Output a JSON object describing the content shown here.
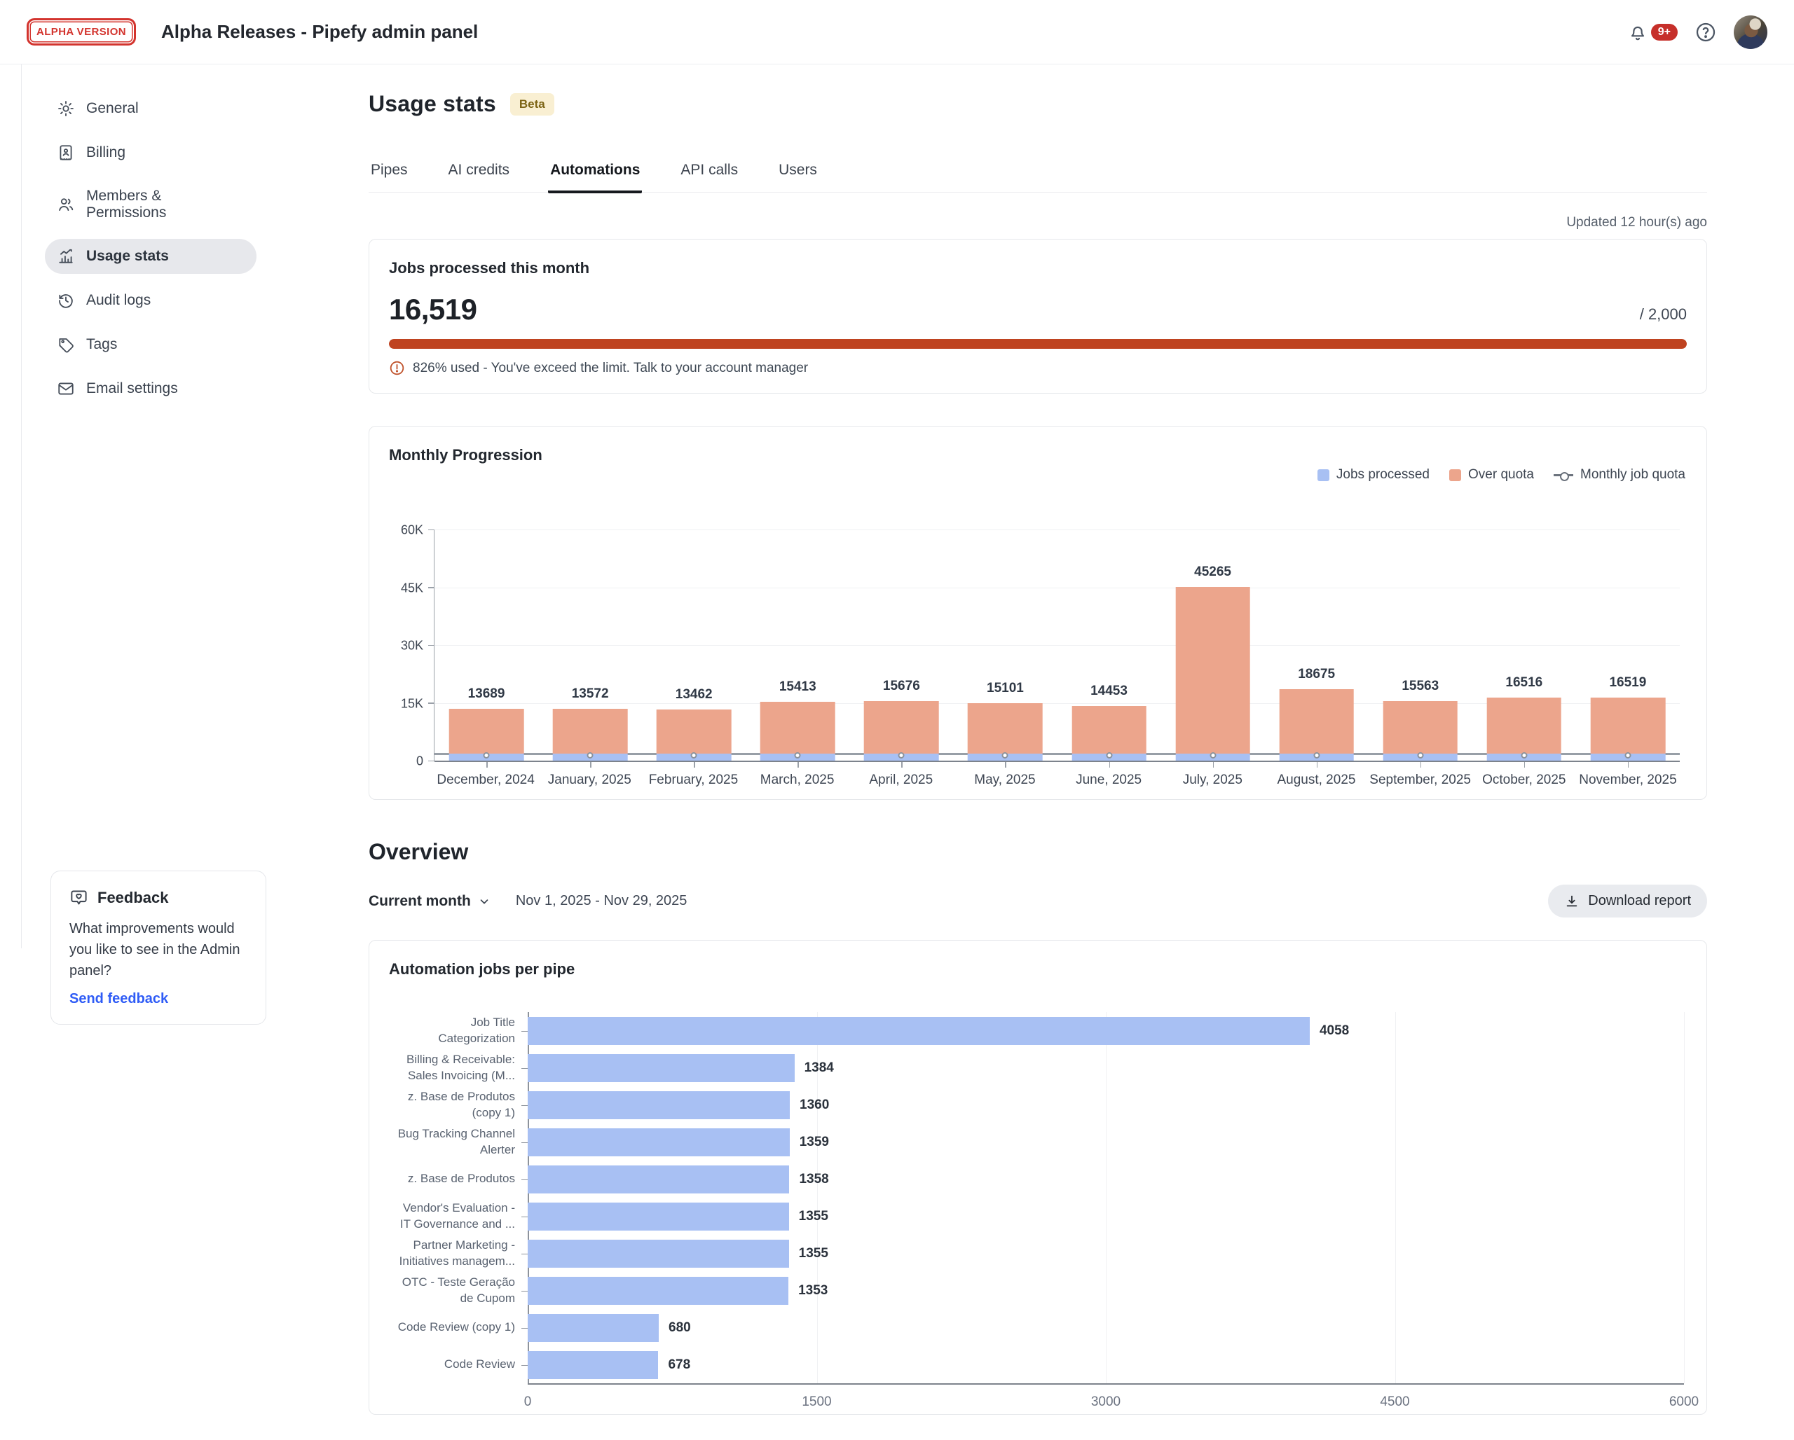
{
  "header": {
    "logo_badge": "ALPHA VERSION",
    "title": "Alpha Releases - Pipefy admin panel",
    "notification_count": "9+"
  },
  "sidebar": {
    "items": [
      {
        "label": "General",
        "icon": "gear",
        "active": false
      },
      {
        "label": "Billing",
        "icon": "billing",
        "active": false
      },
      {
        "label": "Members & Permissions",
        "icon": "members",
        "active": false
      },
      {
        "label": "Usage stats",
        "icon": "usage",
        "active": true
      },
      {
        "label": "Audit logs",
        "icon": "audit",
        "active": false
      },
      {
        "label": "Tags",
        "icon": "tag",
        "active": false
      },
      {
        "label": "Email settings",
        "icon": "email",
        "active": false
      }
    ]
  },
  "feedback": {
    "title": "Feedback",
    "body": "What improvements would you like to see in the Admin panel?",
    "link": "Send feedback"
  },
  "page": {
    "title": "Usage stats",
    "badge": "Beta",
    "tabs": [
      "Pipes",
      "AI credits",
      "Automations",
      "API calls",
      "Users"
    ],
    "active_tab": "Automations",
    "updated": "Updated 12 hour(s) ago"
  },
  "jobs_card": {
    "title": "Jobs processed this month",
    "value": "16,519",
    "quota": "/ 2,000",
    "warning": "826% used - You've exceed the limit. Talk to your account manager"
  },
  "overview": {
    "title": "Overview",
    "period": "Current month",
    "date_range": "Nov 1, 2025 - Nov 29, 2025",
    "download": "Download report"
  },
  "chart_data": [
    {
      "type": "bar",
      "stacked": true,
      "title": "Monthly Progression",
      "categories": [
        "December, 2024",
        "January, 2025",
        "February, 2025",
        "March, 2025",
        "April, 2025",
        "May, 2025",
        "June, 2025",
        "July, 2025",
        "August, 2025",
        "September, 2025",
        "October, 2025",
        "November, 2025"
      ],
      "totals": [
        13689,
        13572,
        13462,
        15413,
        15676,
        15101,
        14453,
        45265,
        18675,
        15563,
        16516,
        16519
      ],
      "series": [
        {
          "name": "Jobs processed",
          "color": "#a8c0f3",
          "values": [
            2000,
            2000,
            2000,
            2000,
            2000,
            2000,
            2000,
            2000,
            2000,
            2000,
            2000,
            2000
          ]
        },
        {
          "name": "Over quota",
          "color": "#eca58c",
          "values": [
            11689,
            11572,
            11462,
            13413,
            13676,
            13101,
            12453,
            43265,
            16675,
            13563,
            14516,
            14519
          ]
        }
      ],
      "quota_line": {
        "name": "Monthly job quota",
        "value": 2000
      },
      "yticks": [
        "0",
        "15K",
        "30K",
        "45K",
        "60K"
      ],
      "ylim": [
        0,
        60000
      ],
      "legend_position": "top-right",
      "grid": true
    },
    {
      "type": "bar",
      "orientation": "horizontal",
      "title": "Automation jobs per pipe",
      "categories": [
        "Job Title\nCategorization",
        "Billing & Receivable:\nSales Invoicing (M...",
        "z. Base de Produtos\n(copy 1)",
        "Bug Tracking Channel\nAlerter",
        "z. Base de Produtos",
        "Vendor's Evaluation -\nIT Governance and ...",
        "Partner Marketing -\nInitiatives managem...",
        "OTC - Teste Geração\nde Cupom",
        "Code Review (copy 1)",
        "Code Review"
      ],
      "values": [
        4058,
        1384,
        1360,
        1359,
        1358,
        1355,
        1355,
        1353,
        680,
        678
      ],
      "bar_color": "#a8c0f3",
      "xticks": [
        "0",
        "1500",
        "3000",
        "4500",
        "6000"
      ],
      "xlim": [
        0,
        6000
      ],
      "grid": true
    }
  ],
  "colors": {
    "alpha_badge_red": "#d3342e",
    "notification_red": "#c62f2a",
    "beta_bg": "#f9efd2",
    "beta_text": "#7d6516",
    "progress_red": "#bf4320",
    "warning_orange": "#c0532c",
    "bar_blue": "#a8c0f3",
    "bar_salmon": "#eca58c",
    "quota_line_gray": "#6c737d",
    "link_blue": "#2f5cf6",
    "sidebar_active_bg": "#e7e8ec"
  }
}
